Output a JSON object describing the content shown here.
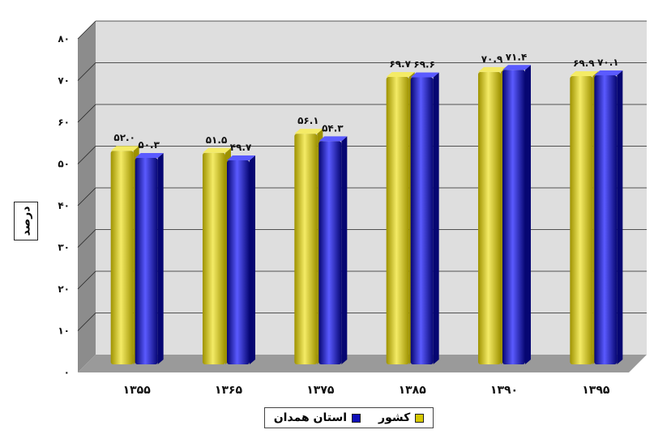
{
  "colors": {
    "country": "#d6c800",
    "country_dark": "#9e9200",
    "country_light": "#f4eb66",
    "province": "#1010b8",
    "province_dark": "#060672",
    "province_light": "#5a5aff",
    "wall": "#dedede",
    "floor": "#9a9a9a"
  },
  "chart_data": {
    "type": "bar",
    "categories": [
      "۱۳۵۵",
      "۱۳۶۵",
      "۱۳۷۵",
      "۱۳۸۵",
      "۱۳۹۰",
      "۱۳۹۵"
    ],
    "series": [
      {
        "name": "کشور",
        "values": [
          52.0,
          51.5,
          56.1,
          69.7,
          70.9,
          69.9
        ],
        "labels": [
          "۵۲.۰",
          "۵۱.۵",
          "۵۶.۱",
          "۶۹.۷",
          "۷۰.۹",
          "۶۹.۹"
        ]
      },
      {
        "name": "استان همدان",
        "values": [
          50.3,
          49.7,
          54.3,
          69.6,
          71.4,
          70.1
        ],
        "labels": [
          "۵۰.۳",
          "۴۹.۷",
          "۵۴.۳",
          "۶۹.۶",
          "۷۱.۴",
          "۷۰.۱"
        ]
      }
    ],
    "yticks": [
      "۰",
      "۱۰",
      "۲۰",
      "۳۰",
      "۴۰",
      "۵۰",
      "۶۰",
      "۷۰",
      "۸۰"
    ],
    "ylim": [
      0,
      80
    ],
    "ylabel": "درصد",
    "xlabel": "",
    "grid": true,
    "legend": "bottom"
  }
}
